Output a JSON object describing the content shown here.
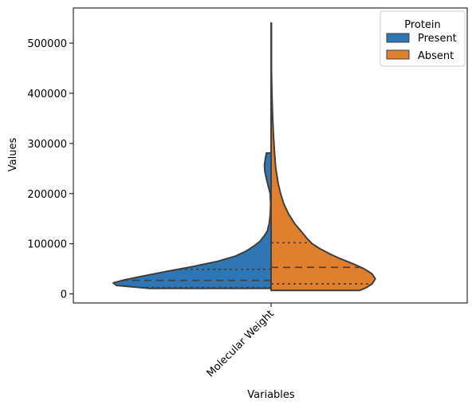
{
  "chart_data": {
    "type": "violin",
    "split": true,
    "xlabel": "Variables",
    "ylabel": "Values",
    "categories": [
      "Molecular Weight"
    ],
    "ylim": [
      -18000,
      570000
    ],
    "yticks": [
      0,
      100000,
      200000,
      300000,
      400000,
      500000
    ],
    "ytick_labels": [
      "0",
      "100000",
      "200000",
      "300000",
      "400000",
      "500000"
    ],
    "legend": {
      "title": "Protein",
      "placement": "top-right",
      "entries": [
        {
          "label": "Present",
          "color": "#2e77b4"
        },
        {
          "label": "Absent",
          "color": "#e07f2e"
        }
      ]
    },
    "series": [
      {
        "name": "Present",
        "side": "left",
        "color": "#2e77b4",
        "min": 11000,
        "max": 281000,
        "quartiles": [
          13000,
          27000,
          49000
        ],
        "density": [
          [
            11000,
            0.77
          ],
          [
            17000,
            0.98
          ],
          [
            22000,
            1.0
          ],
          [
            28000,
            0.93
          ],
          [
            35000,
            0.82
          ],
          [
            45000,
            0.66
          ],
          [
            55000,
            0.49
          ],
          [
            65000,
            0.34
          ],
          [
            75000,
            0.23
          ],
          [
            85000,
            0.16
          ],
          [
            95000,
            0.11
          ],
          [
            105000,
            0.07
          ],
          [
            115000,
            0.045
          ],
          [
            125000,
            0.025
          ],
          [
            140000,
            0.012
          ],
          [
            160000,
            0.005
          ],
          [
            180000,
            0.003
          ],
          [
            200000,
            0.006
          ],
          [
            215000,
            0.018
          ],
          [
            230000,
            0.03
          ],
          [
            245000,
            0.04
          ],
          [
            258000,
            0.042
          ],
          [
            270000,
            0.036
          ],
          [
            281000,
            0.03
          ]
        ]
      },
      {
        "name": "Absent",
        "side": "right",
        "color": "#e07f2e",
        "min": 7000,
        "max": 540000,
        "quartiles": [
          20000,
          53000,
          102000
        ],
        "density": [
          [
            7000,
            0.56
          ],
          [
            12000,
            0.6
          ],
          [
            20000,
            0.64
          ],
          [
            30000,
            0.66
          ],
          [
            40000,
            0.64
          ],
          [
            50000,
            0.59
          ],
          [
            60000,
            0.52
          ],
          [
            70000,
            0.44
          ],
          [
            80000,
            0.37
          ],
          [
            90000,
            0.31
          ],
          [
            100000,
            0.26
          ],
          [
            110000,
            0.23
          ],
          [
            125000,
            0.19
          ],
          [
            140000,
            0.15
          ],
          [
            160000,
            0.11
          ],
          [
            180000,
            0.08
          ],
          [
            200000,
            0.06
          ],
          [
            220000,
            0.045
          ],
          [
            250000,
            0.03
          ],
          [
            280000,
            0.022
          ],
          [
            310000,
            0.016
          ],
          [
            350000,
            0.01
          ],
          [
            400000,
            0.005
          ],
          [
            450000,
            0.002
          ],
          [
            500000,
            0.002
          ],
          [
            540000,
            0.002
          ]
        ]
      }
    ]
  }
}
